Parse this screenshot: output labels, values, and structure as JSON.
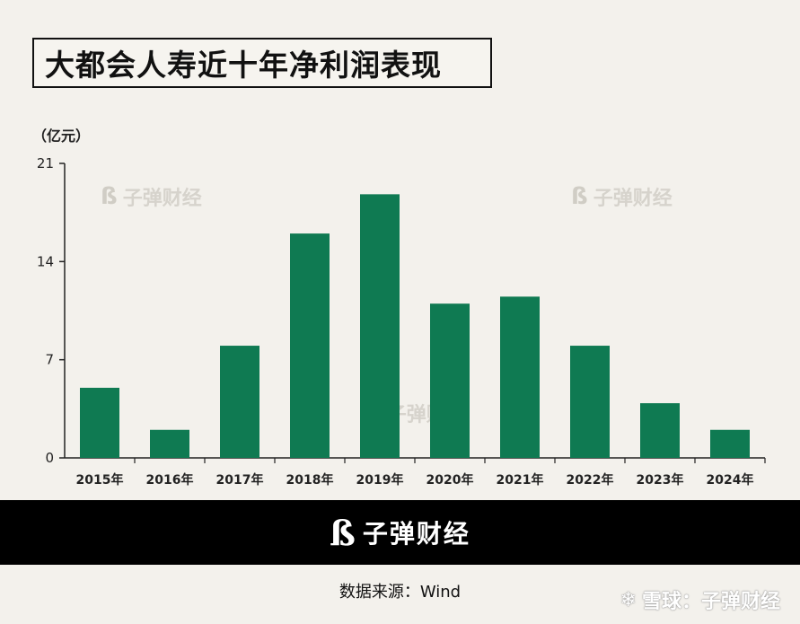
{
  "title": "大都会人寿近十年净利润表现",
  "unit_label": "（亿元）",
  "watermark_text": "子弹财经",
  "source_text": "数据来源：Wind",
  "xueqiu_text": "雪球：子弹财经",
  "colors": {
    "bar": "#0f7a52",
    "background": "#f3f1ec",
    "axis": "#222222"
  },
  "icons": {
    "brand_logo": "bullet-logo-icon",
    "xueqiu_logo": "snowball-icon"
  },
  "chart_data": {
    "type": "bar",
    "title": "大都会人寿近十年净利润表现",
    "xlabel": "",
    "ylabel": "（亿元）",
    "categories": [
      "2015年",
      "2016年",
      "2017年",
      "2018年",
      "2019年",
      "2020年",
      "2021年",
      "2022年",
      "2023年",
      "2024年"
    ],
    "values": [
      5.0,
      2.0,
      8.0,
      16.0,
      18.8,
      11.0,
      11.5,
      8.0,
      3.9,
      2.0
    ],
    "ylim": [
      0,
      21
    ],
    "yticks": [
      0,
      7,
      14,
      21
    ],
    "grid": false,
    "legend": "none"
  }
}
